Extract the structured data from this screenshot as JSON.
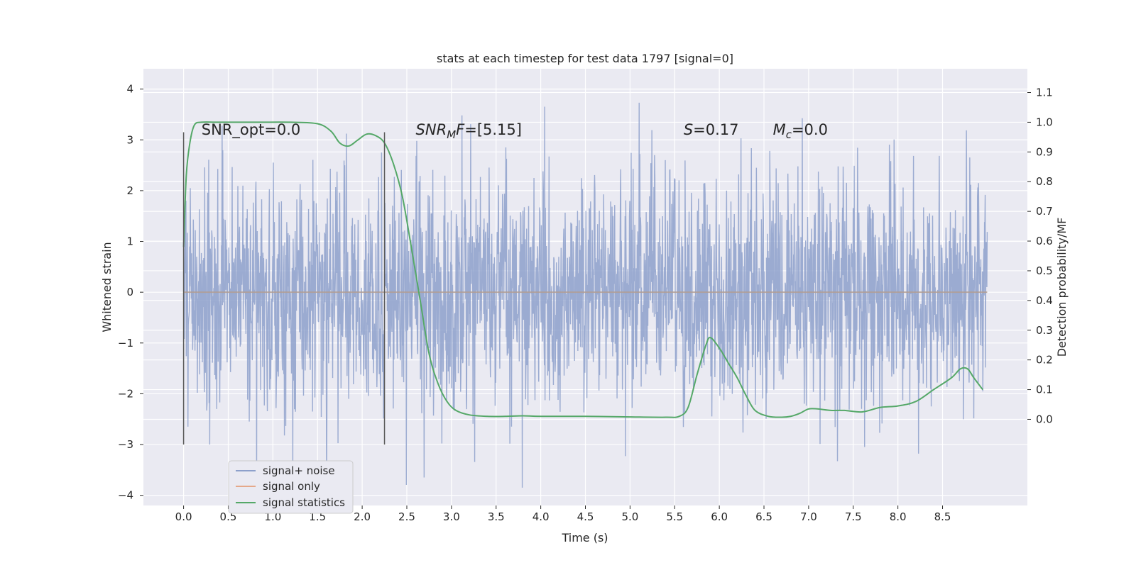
{
  "chart_data": {
    "type": "line",
    "title": "stats at each timestep for test data 1797 [signal=0]",
    "xlabel": "Time (s)",
    "ylabel": "Whitened strain",
    "ylabel_right": "Detection probability/MF",
    "xlim": [
      -0.45,
      9.45
    ],
    "ylim": [
      -4.2,
      4.4
    ],
    "ylim_right": [
      -0.29,
      1.18
    ],
    "x_ticks": [
      0.0,
      0.5,
      1.0,
      1.5,
      2.0,
      2.5,
      3.0,
      3.5,
      4.0,
      4.5,
      5.0,
      5.5,
      6.0,
      6.5,
      7.0,
      7.5,
      8.0,
      8.5
    ],
    "x_tick_labels": [
      "0.0",
      "0.5",
      "1.0",
      "1.5",
      "2.0",
      "2.5",
      "3.0",
      "3.5",
      "4.0",
      "4.5",
      "5.0",
      "5.5",
      "6.0",
      "6.5",
      "7.0",
      "7.5",
      "8.0",
      "8.5"
    ],
    "y_ticks": [
      -4,
      -3,
      -2,
      -1,
      0,
      1,
      2,
      3,
      4
    ],
    "y_tick_labels": [
      "−4",
      "−3",
      "−2",
      "−1",
      "0",
      "1",
      "2",
      "3",
      "4"
    ],
    "y_right_ticks": [
      0.0,
      0.1,
      0.2,
      0.3,
      0.4,
      0.5,
      0.6,
      0.7,
      0.8,
      0.9,
      1.0,
      1.1
    ],
    "y_right_tick_labels": [
      "0.0",
      "0.1",
      "0.2",
      "0.3",
      "0.4",
      "0.5",
      "0.6",
      "0.7",
      "0.8",
      "0.9",
      "1.0",
      "1.1"
    ],
    "grid": true,
    "legend_position": "lower-left",
    "series": [
      {
        "name": "signal+ noise",
        "axis": "left",
        "color": "#8da0cb",
        "kind": "noise",
        "x_range": [
          0.0,
          9.0
        ],
        "typical_amplitude": 1.1,
        "max": 4.05,
        "min": -3.85
      },
      {
        "name": "signal only",
        "axis": "left",
        "color": "#e5a88a",
        "x": [
          0.0,
          9.0
        ],
        "y": [
          0.0,
          0.0
        ]
      },
      {
        "name": "signal statistics",
        "axis": "right",
        "color": "#55a868",
        "x": [
          0.0,
          0.03,
          0.07,
          0.12,
          0.2,
          0.4,
          0.8,
          1.2,
          1.5,
          1.65,
          1.75,
          1.85,
          1.95,
          2.05,
          2.15,
          2.25,
          2.35,
          2.45,
          2.55,
          2.65,
          2.75,
          2.85,
          2.95,
          3.05,
          3.2,
          3.4,
          3.6,
          3.8,
          4.0,
          4.5,
          5.0,
          5.4,
          5.55,
          5.65,
          5.75,
          5.85,
          5.9,
          6.0,
          6.1,
          6.2,
          6.3,
          6.4,
          6.55,
          6.7,
          6.8,
          6.9,
          7.0,
          7.1,
          7.25,
          7.4,
          7.6,
          7.8,
          8.0,
          8.2,
          8.4,
          8.6,
          8.7,
          8.78,
          8.85,
          8.95
        ],
        "y": [
          0.58,
          0.82,
          0.93,
          0.99,
          1.0,
          1.0,
          1.0,
          1.0,
          0.995,
          0.97,
          0.93,
          0.92,
          0.94,
          0.96,
          0.955,
          0.93,
          0.86,
          0.75,
          0.58,
          0.4,
          0.22,
          0.12,
          0.06,
          0.03,
          0.015,
          0.01,
          0.01,
          0.012,
          0.01,
          0.01,
          0.008,
          0.007,
          0.01,
          0.04,
          0.15,
          0.25,
          0.275,
          0.24,
          0.19,
          0.14,
          0.08,
          0.03,
          0.01,
          0.007,
          0.01,
          0.02,
          0.035,
          0.035,
          0.03,
          0.03,
          0.025,
          0.04,
          0.045,
          0.06,
          0.1,
          0.14,
          0.17,
          0.17,
          0.14,
          0.1
        ]
      }
    ],
    "vlines": [
      {
        "x": 0.0,
        "ymin": -3.0,
        "ymax": 3.15,
        "color": "#595959"
      },
      {
        "x": 2.25,
        "ymin": -3.0,
        "ymax": 3.15,
        "color": "#595959"
      }
    ],
    "annotations": [
      {
        "id": "snr-opt",
        "x": 0.2,
        "y": 3.1,
        "parts": [
          {
            "text": "SNR_opt=0.0",
            "style": "normal"
          }
        ]
      },
      {
        "id": "snr-mf",
        "x": 2.6,
        "y": 3.1,
        "parts": [
          {
            "text": "SNR",
            "style": "italic"
          },
          {
            "text": "M",
            "style": "italic-sub"
          },
          {
            "text": "F",
            "style": "italic"
          },
          {
            "text": "=[5.15]",
            "style": "normal"
          }
        ]
      },
      {
        "id": "stat-s",
        "x": 5.6,
        "y": 3.1,
        "parts": [
          {
            "text": "S",
            "style": "italic"
          },
          {
            "text": "=0.17",
            "style": "normal"
          }
        ]
      },
      {
        "id": "stat-mc",
        "x": 6.6,
        "y": 3.1,
        "parts": [
          {
            "text": "M",
            "style": "italic"
          },
          {
            "text": "c",
            "style": "italic-sub"
          },
          {
            "text": "=0.0",
            "style": "normal"
          }
        ]
      }
    ]
  },
  "colors": {
    "axes_background": "#eaeaf2",
    "grid": "#ffffff",
    "text": "#262626"
  }
}
